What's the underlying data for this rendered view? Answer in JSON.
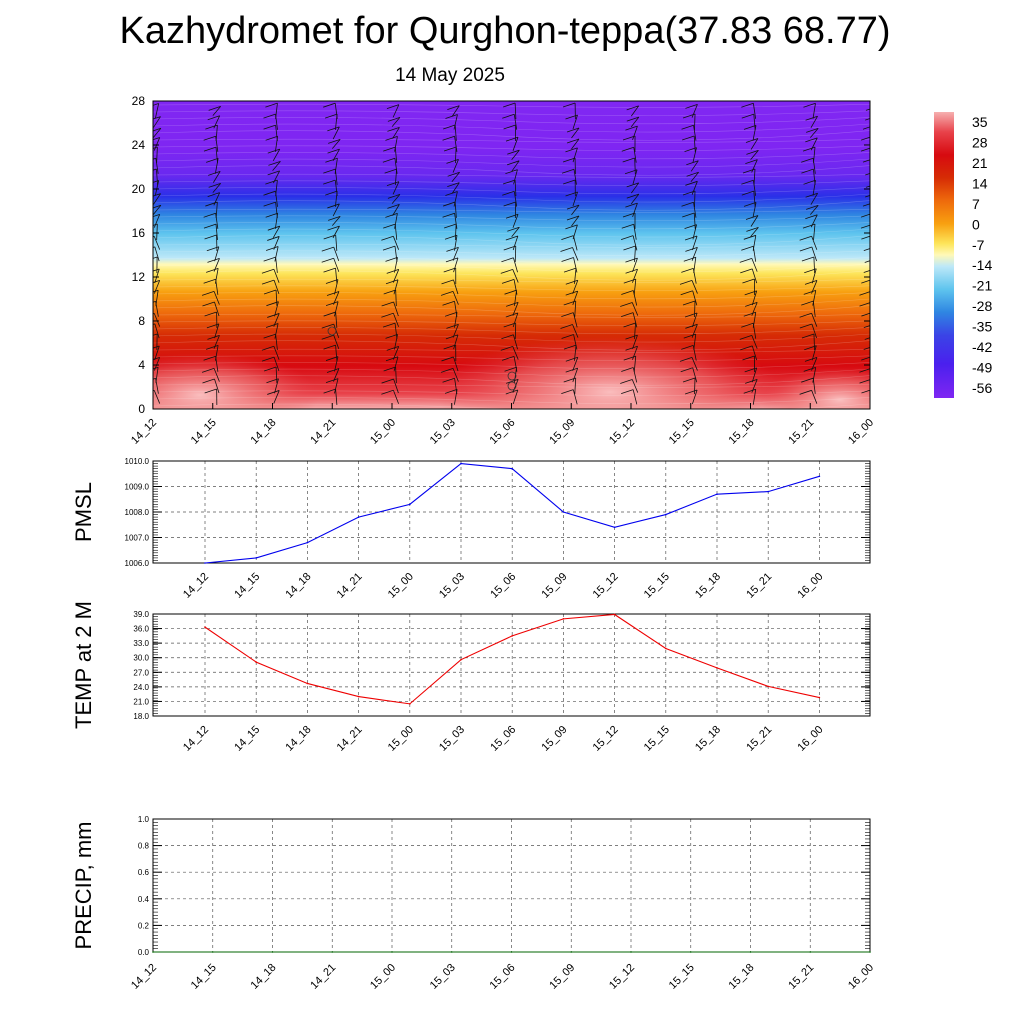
{
  "header": {
    "title": "Kazhydromet for Qurghon-teppa(37.83 68.77)",
    "date": "14 May 2025"
  },
  "chart_data": [
    {
      "type": "heatmap",
      "name": "meteogram-cross-section",
      "x_categories": [
        "14_12",
        "14_15",
        "14_18",
        "14_21",
        "15_00",
        "15_03",
        "15_06",
        "15_09",
        "15_12",
        "15_15",
        "15_18",
        "15_21",
        "16_00"
      ],
      "y_ticks": [
        "0",
        "4",
        "8",
        "12",
        "16",
        "20",
        "24",
        "28"
      ],
      "ylim": [
        0,
        28
      ],
      "colorbar_labels": [
        "35",
        "28",
        "21",
        "14",
        "7",
        "0",
        "-7",
        "-14",
        "-21",
        "-28",
        "-35",
        "-42",
        "-49",
        "-56"
      ],
      "colorbar_colors": [
        "#f4a7a7",
        "#e8424a",
        "#d90f12",
        "#d42a04",
        "#ea5a0a",
        "#f7960e",
        "#fbd31b",
        "#fff9a8",
        "#7fd2ee",
        "#35a8e6",
        "#2e74e4",
        "#3c45e6",
        "#4020f0",
        "#7b22f2"
      ]
    },
    {
      "type": "line",
      "name": "pmsl",
      "ylabel": "PMSL",
      "x": [
        "14_12",
        "14_15",
        "14_18",
        "14_21",
        "15_00",
        "15_03",
        "15_06",
        "15_09",
        "15_12",
        "15_15",
        "15_18",
        "15_21",
        "16_00"
      ],
      "series": [
        {
          "values": [
            1006.0,
            1006.2,
            1006.8,
            1007.8,
            1008.3,
            1009.9,
            1009.7,
            1008.0,
            1007.4,
            1007.9,
            1008.7,
            1008.8,
            1009.4
          ]
        }
      ],
      "ylim": [
        1006.0,
        1010.0
      ],
      "y_ticks": [
        "1006.0",
        "1007.0",
        "1008.0",
        "1009.0",
        "1010.0"
      ],
      "line_color": "#0000ee"
    },
    {
      "type": "line",
      "name": "temp-2m",
      "ylabel": "TEMP at 2 M",
      "x": [
        "14_12",
        "14_15",
        "14_18",
        "14_21",
        "15_00",
        "15_03",
        "15_06",
        "15_09",
        "15_12",
        "15_15",
        "15_18",
        "15_21",
        "16_00"
      ],
      "series": [
        {
          "values": [
            36.3,
            29.1,
            24.7,
            22.0,
            20.5,
            29.6,
            34.5,
            38.0,
            38.9,
            31.9,
            27.9,
            24.1,
            21.8
          ]
        }
      ],
      "ylim": [
        18.0,
        39.0
      ],
      "y_ticks": [
        "18.0",
        "21.0",
        "24.0",
        "27.0",
        "30.0",
        "33.0",
        "36.0",
        "39.0"
      ],
      "line_color": "#ee0000"
    },
    {
      "type": "line",
      "name": "precip",
      "ylabel": "PRECIP, mm",
      "x": [
        "14_12",
        "14_15",
        "14_18",
        "14_21",
        "15_00",
        "15_03",
        "15_06",
        "15_09",
        "15_12",
        "15_15",
        "15_18",
        "15_21",
        "16_00"
      ],
      "series": [
        {
          "values": [
            0,
            0,
            0,
            0,
            0,
            0,
            0,
            0,
            0,
            0,
            0,
            0,
            0
          ]
        }
      ],
      "ylim": [
        0.0,
        1.0
      ],
      "y_ticks": [
        "0.0",
        "0.2",
        "0.4",
        "0.6",
        "0.8",
        "1.0"
      ],
      "line_color": "#006600"
    }
  ]
}
